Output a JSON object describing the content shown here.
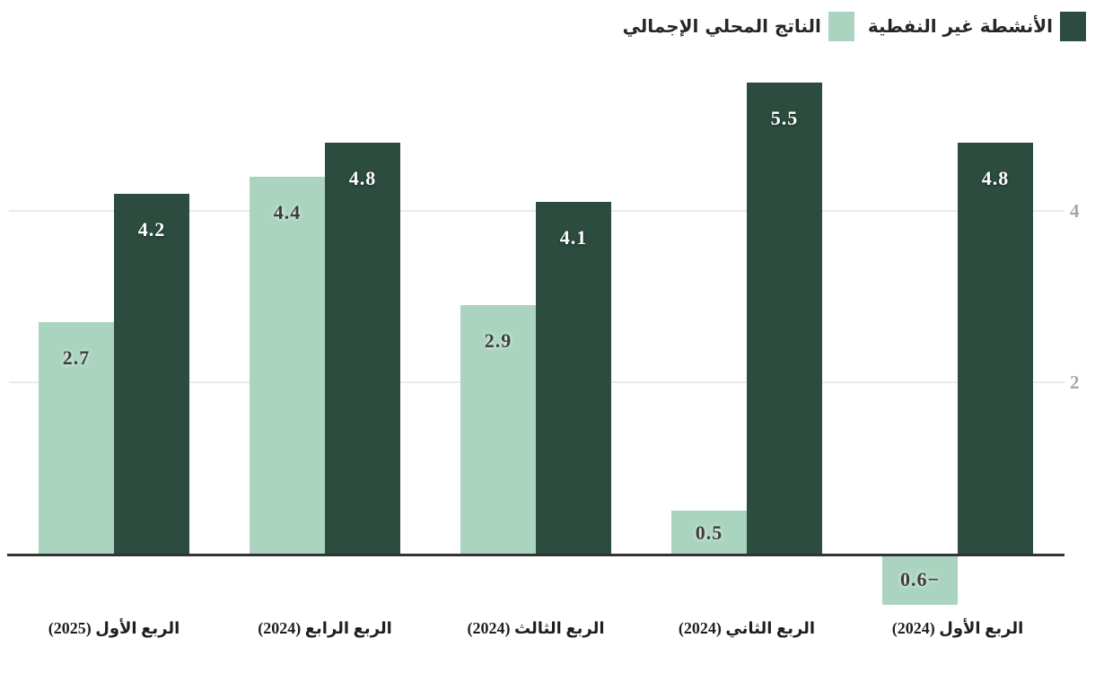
{
  "chart_data": {
    "type": "bar",
    "direction": "rtl",
    "title": "",
    "xlabel": "",
    "ylabel": "",
    "grid": true,
    "legend_position": "top-right",
    "yticks": [
      4,
      2
    ],
    "ylim": [
      -0.75,
      5.9
    ],
    "categories": [
      "الربع الأول (2024)",
      "الربع الثاني (2024)",
      "الربع الثالث (2024)",
      "الربع الرابع (2024)",
      "الربع الأول (2025)"
    ],
    "series": [
      {
        "name": "الأنشطة غير النفطية",
        "color": "#2b4c3e",
        "label_color": "#ffffff",
        "label_style": "on-dark",
        "values": [
          4.8,
          5.5,
          4.1,
          4.8,
          4.2
        ],
        "labels": [
          "4.8",
          "5.5",
          "4.1",
          "4.8",
          "4.2"
        ]
      },
      {
        "name": "الناتج المحلي الإجمالي",
        "color": "#aad4c0",
        "label_color": "#3d3d3d",
        "label_style": "on-light",
        "values": [
          -0.6,
          0.5,
          2.9,
          4.4,
          2.7
        ],
        "labels": [
          "−0.6",
          "0.5",
          "2.9",
          "4.4",
          "2.7"
        ]
      }
    ]
  },
  "colors": {
    "gridline": "#ebebeb",
    "axis_line": "#333333",
    "ytick_label": "#a6a6a6",
    "category_label": "#1f1f1f"
  }
}
